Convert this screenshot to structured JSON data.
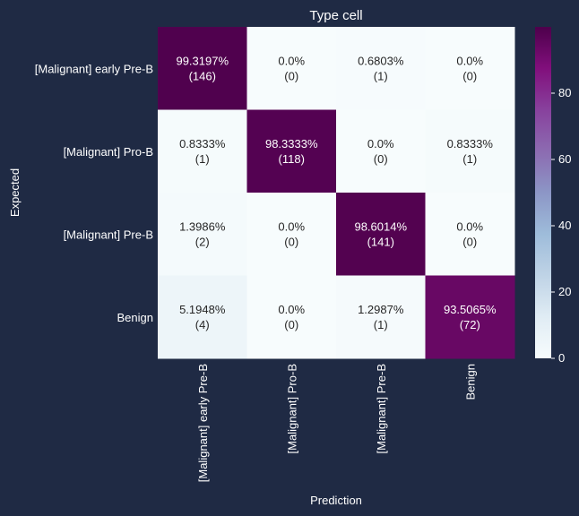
{
  "chart_data": {
    "type": "heatmap",
    "title": "Type cell",
    "xlabel": "Prediction",
    "ylabel": "Expected",
    "row_labels": [
      "[Malignant] early Pre-B",
      "[Malignant] Pro-B",
      "[Malignant] Pre-B",
      "Benign"
    ],
    "col_labels": [
      "[Malignant] early Pre-B",
      "[Malignant] Pro-B",
      "[Malignant] Pre-B",
      "Benign"
    ],
    "percent_labels": [
      [
        "99.3197%",
        "0.0%",
        "0.6803%",
        "0.0%"
      ],
      [
        "0.8333%",
        "98.3333%",
        "0.0%",
        "0.8333%"
      ],
      [
        "1.3986%",
        "0.0%",
        "98.6014%",
        "0.0%"
      ],
      [
        "5.1948%",
        "0.0%",
        "1.2987%",
        "93.5065%"
      ]
    ],
    "count_labels": [
      [
        "(146)",
        "(0)",
        "(1)",
        "(0)"
      ],
      [
        "(1)",
        "(118)",
        "(0)",
        "(1)"
      ],
      [
        "(2)",
        "(0)",
        "(141)",
        "(0)"
      ],
      [
        "(4)",
        "(0)",
        "(1)",
        "(72)"
      ]
    ],
    "values": [
      [
        99.3197,
        0.0,
        0.6803,
        0.0
      ],
      [
        0.8333,
        98.3333,
        0.0,
        0.8333
      ],
      [
        1.3986,
        0.0,
        98.6014,
        0.0
      ],
      [
        5.1948,
        0.0,
        1.2987,
        93.5065
      ]
    ],
    "colorbar": {
      "ticks": [
        "0",
        "20",
        "40",
        "60",
        "80"
      ],
      "range": [
        0,
        100
      ],
      "colormap": "BuPu"
    },
    "colors": {
      "background": "#1f2a44",
      "text": "#ffffff",
      "cell_dark_text": "#262626",
      "cell_light_text": "#ffffff"
    }
  }
}
